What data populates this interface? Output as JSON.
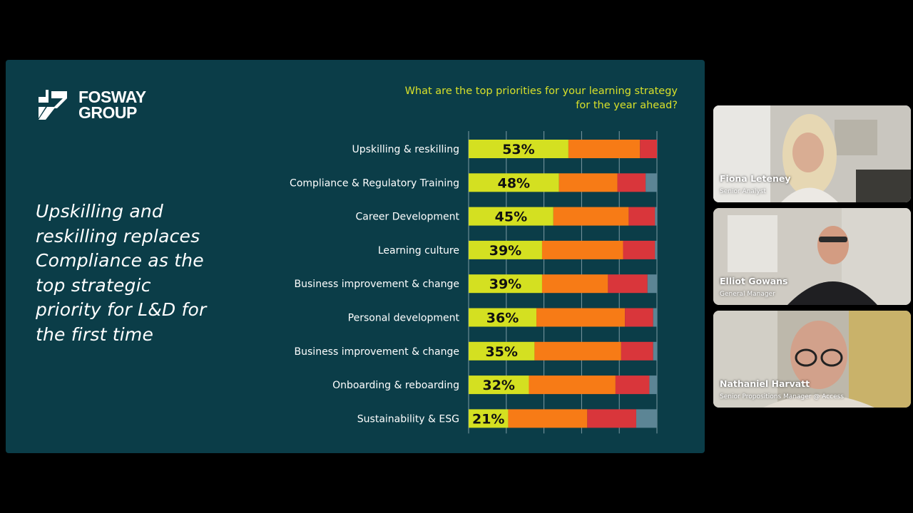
{
  "slide": {
    "logo": {
      "line1": "FOSWAY",
      "line2": "GROUP"
    },
    "headline": "Upskilling and\nreskilling replaces\nCompliance as the\ntop strategic\npriority for L&D for\nthe first time",
    "question": "What are the top priorities for your learning strategy\nfor the year ahead?"
  },
  "chart_data": {
    "type": "bar",
    "stacked": true,
    "orientation": "horizontal",
    "title": "What are the top priorities for your learning strategy for the year ahead?",
    "categories": [
      "Upskilling & reskilling",
      "Compliance & Regulatory Training",
      "Career Development",
      "Learning culture",
      "Business improvement & change",
      "Personal development",
      "Business improvement & change",
      "Onboarding & reboarding",
      "Sustainability & ESG"
    ],
    "series": [
      {
        "color": "#d4e021",
        "values": [
          53,
          48,
          45,
          39,
          39,
          36,
          35,
          32,
          21
        ]
      },
      {
        "color": "#f77b16",
        "values": [
          38,
          31,
          40,
          43,
          35,
          47,
          46,
          46,
          42
        ]
      },
      {
        "color": "#d9363b",
        "values": [
          9,
          15,
          14,
          17,
          21,
          15,
          17,
          18,
          26
        ]
      },
      {
        "color": "#5c8595",
        "values": [
          0,
          6,
          1,
          1,
          5,
          2,
          2,
          4,
          11
        ]
      }
    ],
    "data_labels": [
      "53%",
      "48%",
      "45%",
      "39%",
      "39%",
      "36%",
      "35%",
      "32%",
      "21%"
    ],
    "xlim": [
      0,
      100
    ],
    "grid": true
  },
  "participants": [
    {
      "name": "Fiona Leteney",
      "role": "Senior Analyst",
      "active": true
    },
    {
      "name": "Elliot Gowans",
      "role": "General Manager",
      "active": false
    },
    {
      "name": "Nathaniel Harvatt",
      "role": "Senior Propositions Manager @ Access",
      "active": false
    }
  ]
}
